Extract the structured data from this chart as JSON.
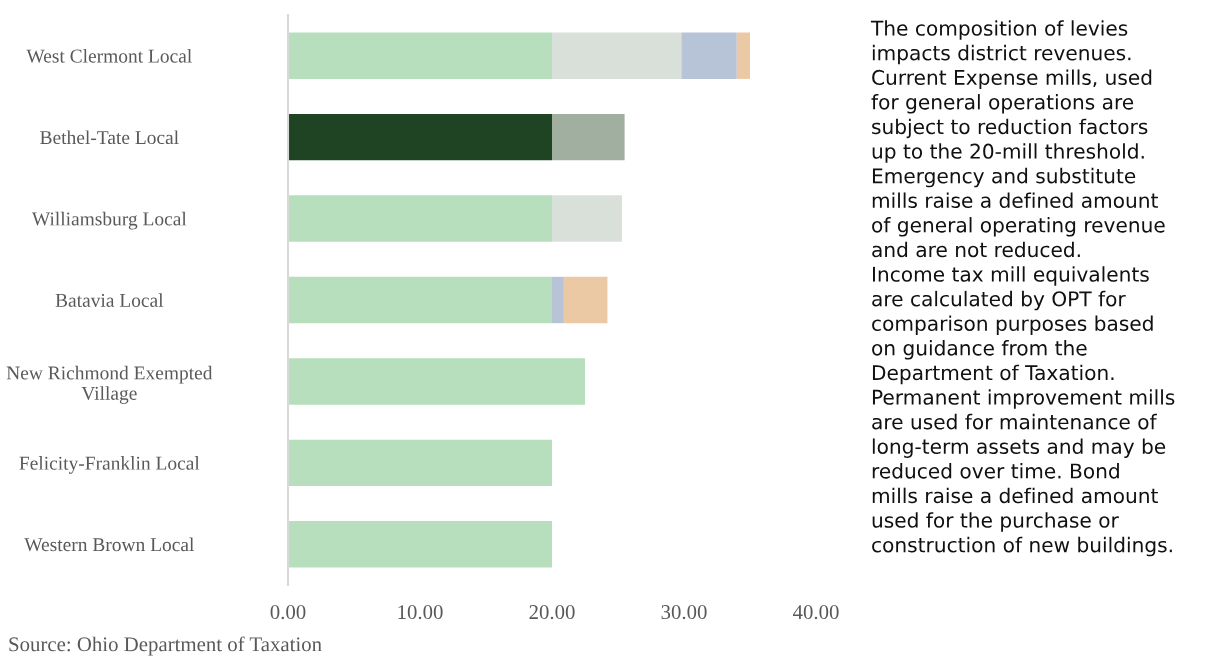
{
  "chart_data": {
    "type": "bar",
    "orientation": "horizontal",
    "stacked": true,
    "categories": [
      "West Clermont Local",
      "Bethel-Tate Local",
      "Williamsburg Local",
      "Batavia Local",
      "New Richmond Exempted Village",
      "Felicity-Franklin Local",
      "Western Brown Local"
    ],
    "series": [
      {
        "colors": [
          "#b7dfbd",
          "#1f4423",
          "#b7dfbd",
          "#b7dfbd",
          "#b7dfbd",
          "#b7dfbd",
          "#b7dfbd"
        ],
        "values": [
          20,
          20,
          20,
          20,
          22.5,
          20,
          20
        ]
      },
      {
        "colors": [
          "#d9e0da",
          "#a1afa0",
          "#d9e0da",
          null,
          null,
          null,
          null
        ],
        "values": [
          9.8,
          5.5,
          5.3,
          null,
          null,
          null,
          null
        ]
      },
      {
        "colors": [
          "#b7c4d7",
          null,
          null,
          "#b7c4d7",
          null,
          null,
          null
        ],
        "values": [
          4.2,
          null,
          null,
          0.9,
          null,
          null,
          null
        ]
      },
      {
        "colors": [
          "#ebc9a5",
          null,
          null,
          "#ebc9a5",
          null,
          null,
          null
        ],
        "values": [
          1.0,
          null,
          null,
          3.3,
          null,
          null,
          null
        ]
      }
    ],
    "xlim": [
      0,
      40
    ],
    "xticks": [
      {
        "value": 0,
        "label": "0.00"
      },
      {
        "value": 10,
        "label": "10.00"
      },
      {
        "value": 20,
        "label": "20.00"
      },
      {
        "value": 30,
        "label": "30.00"
      },
      {
        "value": 40,
        "label": "40.00"
      }
    ],
    "grid": false,
    "legend": false,
    "annotations": [
      "Source: Ohio Department of Taxation",
      "The composition of levies",
      "impacts district revenues.",
      "Current Expense mills, used",
      "for general operations are",
      "subject to reduction factors",
      "up to the 20-mill threshold.",
      "Emergency and substitute",
      "mills raise a defined amount",
      "of general operating revenue",
      "and are not reduced.",
      "Income tax mill equivalents",
      "are calculated by OPT for",
      "comparison purposes based",
      "on guidance from the",
      "Department of Taxation.",
      "Permanent improvement mills",
      "are used for maintenance of",
      "long-term assets and may be",
      "reduced over time. Bond",
      "mills raise a defined amount",
      "used for the purchase or",
      "construction of new buildings."
    ]
  }
}
